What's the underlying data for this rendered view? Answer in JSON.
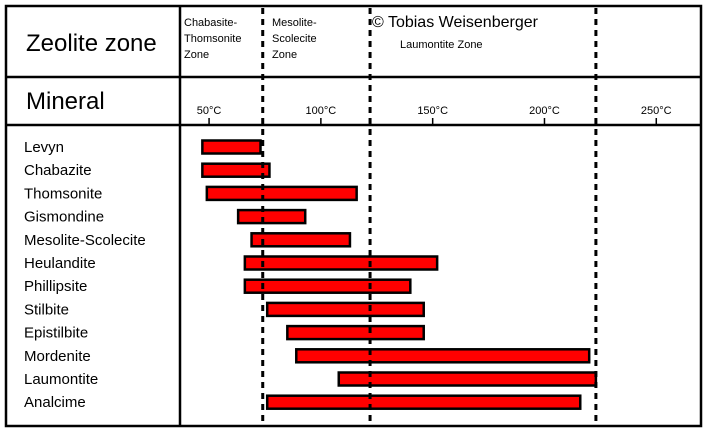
{
  "header": {
    "zone_heading": "Zeolite zone",
    "mineral_heading": "Mineral",
    "credit": "© Tobias Weisenberger"
  },
  "zones": [
    {
      "lines": [
        "Chabasite-",
        "Thomsonite",
        "Zone"
      ]
    },
    {
      "lines": [
        "Mesolite-",
        "Scolecite",
        "Zone"
      ]
    },
    {
      "lines": [
        "Laumontite Zone"
      ]
    }
  ],
  "chart_data": {
    "type": "bar",
    "orientation": "horizontal-range",
    "xlim": [
      37,
      270
    ],
    "x_ticks": [
      50,
      100,
      150,
      200,
      250
    ],
    "x_tick_labels": [
      "50°C",
      "100°C",
      "150°C",
      "200°C",
      "250°C"
    ],
    "zone_boundaries": [
      74,
      122,
      223
    ],
    "categories": [
      "Levyn",
      "Chabazite",
      "Thomsonite",
      "Gismondine",
      "Mesolite-Scolecite",
      "Heulandite",
      "Phillipsite",
      "Stilbite",
      "Epistilbite",
      "Mordenite",
      "Laumontite",
      "Analcime"
    ],
    "ranges": [
      [
        47,
        73
      ],
      [
        47,
        77
      ],
      [
        49,
        116
      ],
      [
        63,
        93
      ],
      [
        69,
        113
      ],
      [
        66,
        152
      ],
      [
        66,
        140
      ],
      [
        76,
        146
      ],
      [
        85,
        146
      ],
      [
        89,
        220
      ],
      [
        108,
        223
      ],
      [
        76,
        216
      ]
    ],
    "bar_color": "#ff0000"
  }
}
